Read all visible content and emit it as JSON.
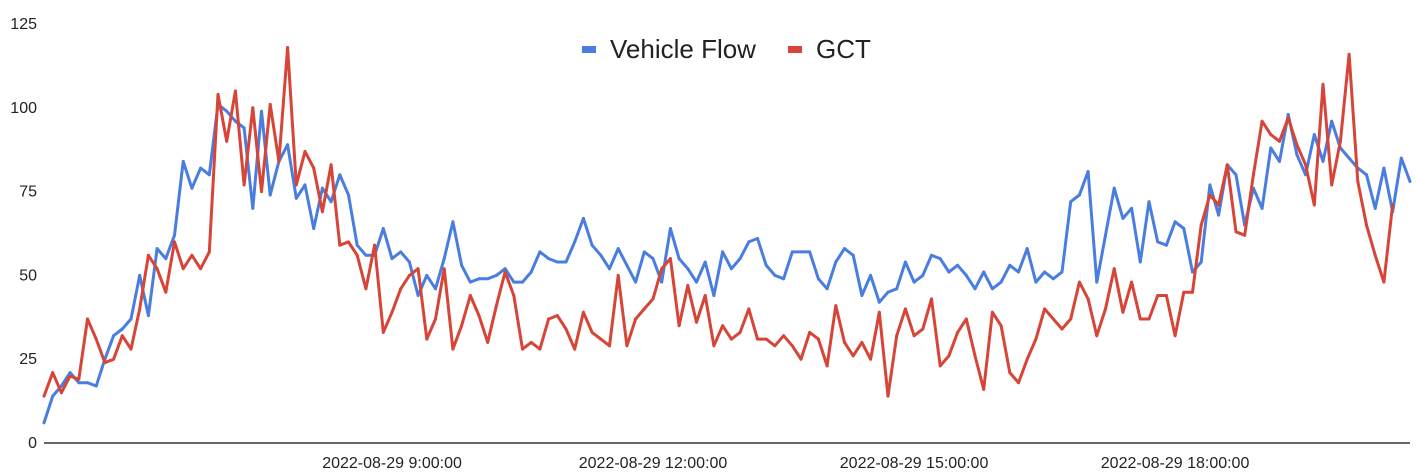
{
  "chart_data": {
    "type": "line",
    "title": "",
    "xlabel": "",
    "ylabel": "",
    "ylim": [
      0,
      125
    ],
    "y_ticks": [
      "0",
      "25",
      "50",
      "75",
      "100",
      "125"
    ],
    "x_tick_labels": [
      "2022-08-29 9:00:00",
      "2022-08-29 12:00:00",
      "2022-08-29 15:00:00",
      "2022-08-29 18:00:00"
    ],
    "x_tick_index": [
      40,
      70,
      100,
      130
    ],
    "legend_position": "top-center",
    "grid": false,
    "series": [
      {
        "name": "Vehicle Flow",
        "color": "#4a7de0",
        "values": [
          6,
          14,
          17,
          21,
          18,
          18,
          17,
          25,
          32,
          34,
          37,
          50,
          38,
          58,
          55,
          62,
          84,
          76,
          82,
          80,
          101,
          99,
          96,
          94,
          70,
          99,
          74,
          84,
          89,
          73,
          77,
          64,
          76,
          72,
          80,
          74,
          59,
          56,
          56,
          64,
          55,
          57,
          54,
          44,
          50,
          46,
          55,
          66,
          53,
          48,
          49,
          49,
          50,
          52,
          48,
          48,
          51,
          57,
          55,
          54,
          54,
          60,
          67,
          59,
          56,
          52,
          58,
          53,
          48,
          57,
          55,
          48,
          64,
          55,
          52,
          48,
          54,
          44,
          57,
          52,
          55,
          60,
          61,
          53,
          50,
          49,
          57,
          57,
          57,
          49,
          46,
          54,
          58,
          56,
          44,
          50,
          42,
          45,
          46,
          54,
          48,
          50,
          56,
          55,
          51,
          53,
          50,
          46,
          51,
          46,
          48,
          53,
          51,
          58,
          48,
          51,
          49,
          51,
          72,
          74,
          81,
          48,
          62,
          76,
          67,
          70,
          54,
          72,
          60,
          59,
          66,
          64,
          51,
          54,
          77,
          68,
          83,
          80,
          65,
          76,
          70,
          88,
          84,
          98,
          86,
          80,
          92,
          84,
          96,
          88,
          85,
          82,
          80,
          70,
          82,
          69,
          85,
          78
        ]
      },
      {
        "name": "GCT",
        "color": "#d64537",
        "values": [
          14,
          21,
          15,
          20,
          19,
          37,
          31,
          24,
          25,
          32,
          28,
          40,
          56,
          52,
          45,
          60,
          52,
          56,
          52,
          57,
          104,
          90,
          105,
          77,
          100,
          75,
          101,
          84,
          118,
          77,
          87,
          82,
          69,
          83,
          59,
          60,
          56,
          46,
          59,
          33,
          39,
          46,
          50,
          52,
          31,
          37,
          52,
          28,
          35,
          44,
          38,
          30,
          41,
          51,
          44,
          28,
          30,
          28,
          37,
          38,
          34,
          28,
          39,
          33,
          31,
          29,
          50,
          29,
          37,
          40,
          43,
          52,
          55,
          35,
          47,
          36,
          44,
          29,
          35,
          31,
          33,
          40,
          31,
          31,
          29,
          32,
          29,
          25,
          33,
          31,
          23,
          41,
          30,
          26,
          30,
          25,
          39,
          14,
          32,
          40,
          32,
          34,
          43,
          23,
          26,
          33,
          37,
          26,
          16,
          39,
          35,
          21,
          18,
          25,
          31,
          40,
          37,
          34,
          37,
          48,
          43,
          32,
          40,
          52,
          39,
          48,
          37,
          37,
          44,
          44,
          32,
          45,
          45,
          65,
          74,
          71,
          83,
          63,
          62,
          80,
          96,
          92,
          90,
          97,
          89,
          83,
          71,
          107,
          77,
          90,
          116,
          78,
          65,
          56,
          48,
          71
        ]
      }
    ]
  }
}
